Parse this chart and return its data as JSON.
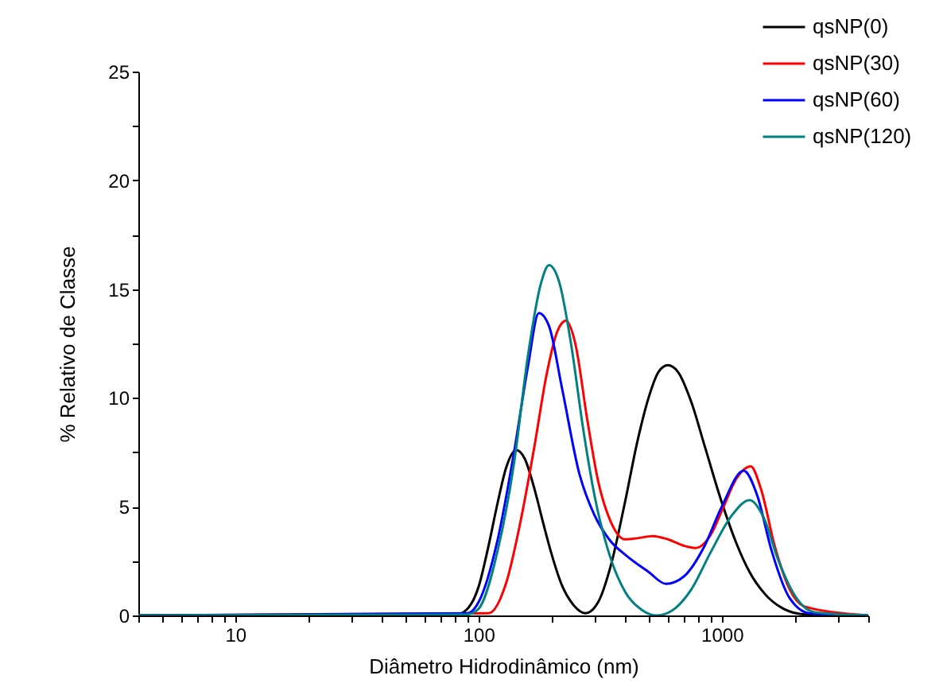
{
  "chart_data": {
    "type": "line",
    "xlabel": "Diâmetro Hidrodinâmico (nm)",
    "ylabel": "% Relativo de Classe",
    "log": "x",
    "grid": false,
    "legend": "top right",
    "xlim": [
      4,
      4000
    ],
    "ylim": [
      0,
      25
    ],
    "xticks": [
      {
        "value": 4,
        "label": null
      },
      {
        "value": 5,
        "label": null
      },
      {
        "value": 6,
        "label": null
      },
      {
        "value": 7,
        "label": null
      },
      {
        "value": 8,
        "label": null
      },
      {
        "value": 9,
        "label": null
      },
      10,
      {
        "value": 20,
        "label": null
      },
      {
        "value": 30,
        "label": null
      },
      {
        "value": 40,
        "label": null
      },
      {
        "value": 50,
        "label": null
      },
      {
        "value": 60,
        "label": null
      },
      {
        "value": 70,
        "label": null
      },
      {
        "value": 80,
        "label": null
      },
      {
        "value": 90,
        "label": null
      },
      100,
      {
        "value": 200,
        "label": null
      },
      {
        "value": 300,
        "label": null
      },
      {
        "value": 400,
        "label": null
      },
      {
        "value": 500,
        "label": null
      },
      {
        "value": 600,
        "label": null
      },
      {
        "value": 700,
        "label": null
      },
      {
        "value": 800,
        "label": null
      },
      {
        "value": 900,
        "label": null
      },
      1000,
      {
        "value": 2000,
        "label": null
      },
      {
        "value": 3000,
        "label": null
      },
      {
        "value": 4000,
        "label": null
      }
    ],
    "yticks": [
      0,
      {
        "value": 2.5,
        "label": null
      },
      5,
      {
        "value": 7.5,
        "label": null
      },
      10,
      {
        "value": 12.5,
        "label": null
      },
      15,
      {
        "value": 17.5,
        "label": null
      },
      20,
      {
        "value": 22.5,
        "label": null
      },
      25
    ],
    "series": [
      {
        "name": "qsNP(0)",
        "color": "#000000",
        "x": [
          4,
          80,
          90,
          100,
          110,
          120,
          130,
          143,
          155,
          170,
          185,
          200,
          220,
          245,
          275,
          310,
          350,
          400,
          450,
          500,
          550,
          600,
          660,
          750,
          850,
          1000,
          1150,
          1300,
          1500,
          1800,
          2200,
          4000
        ],
        "values": [
          0,
          0,
          0.3,
          1.3,
          3.2,
          5.2,
          6.8,
          7.6,
          7.2,
          5.8,
          4.2,
          2.8,
          1.4,
          0.5,
          0.1,
          0.6,
          2.3,
          5.2,
          8.0,
          10.0,
          11.2,
          11.5,
          11.2,
          9.8,
          7.8,
          5.2,
          3.3,
          2.0,
          1.0,
          0.3,
          0.05,
          0
        ]
      },
      {
        "name": "qsNP(30)",
        "color": "#ff0000",
        "x": [
          4,
          110,
          130,
          150,
          170,
          190,
          210,
          229,
          250,
          280,
          310,
          350,
          400,
          450,
          520,
          600,
          700,
          780,
          900,
          1000,
          1150,
          1315,
          1450,
          1650,
          1900,
          2200,
          4000
        ],
        "values": [
          0,
          0.1,
          1.5,
          4.5,
          7.8,
          11,
          13,
          13.55,
          12.5,
          9,
          6.2,
          4.3,
          3.5,
          3.55,
          3.65,
          3.5,
          3.2,
          3.1,
          3.7,
          4.8,
          6.3,
          6.85,
          5.8,
          3.2,
          1.2,
          0.4,
          0
        ]
      },
      {
        "name": "qsNP(60)",
        "color": "#0000ff",
        "x": [
          4,
          90,
          100,
          120,
          140,
          160,
          177,
          195,
          220,
          260,
          300,
          350,
          400,
          500,
          590,
          700,
          850,
          1000,
          1230,
          1400,
          1600,
          1900,
          2300,
          4000
        ],
        "values": [
          0,
          0.1,
          0.6,
          3.5,
          7.5,
          11.5,
          13.9,
          13.3,
          10.5,
          6.5,
          4.6,
          3.4,
          2.8,
          2.0,
          1.45,
          1.8,
          3.2,
          5.0,
          6.65,
          5.5,
          3.0,
          0.8,
          0.1,
          0
        ]
      },
      {
        "name": "qsNP(120)",
        "color": "#008080",
        "x": [
          4,
          90,
          100,
          120,
          140,
          160,
          180,
          195,
          215,
          240,
          270,
          300,
          350,
          400,
          470,
          540,
          620,
          750,
          900,
          1100,
          1300,
          1500,
          1700,
          2000,
          2400,
          4000
        ],
        "values": [
          0,
          0.05,
          0.3,
          3,
          7,
          12,
          15.2,
          16.1,
          15.3,
          12.5,
          8.5,
          5.5,
          2.6,
          1.1,
          0.25,
          0.0,
          0.2,
          1.2,
          2.9,
          4.6,
          5.3,
          4.4,
          2.6,
          0.9,
          0.15,
          0
        ]
      }
    ]
  }
}
